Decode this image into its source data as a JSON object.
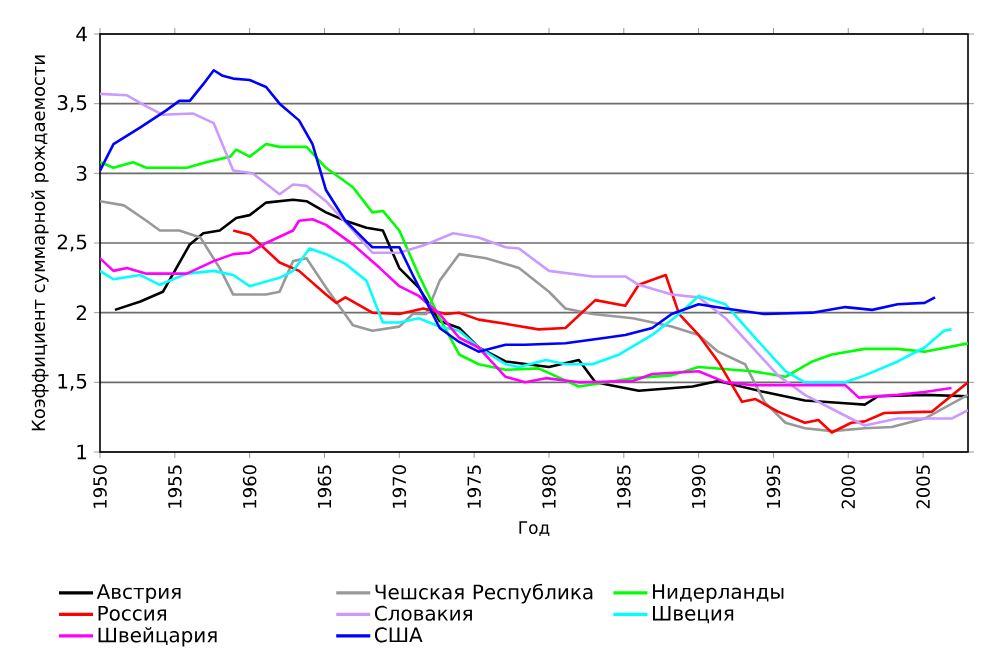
{
  "chart_data": {
    "type": "line",
    "xlabel": "Год",
    "ylabel": "Коэффициент суммарной рождаемости",
    "xlim": [
      1950,
      2008
    ],
    "xticks": [
      1950,
      1955,
      1960,
      1965,
      1970,
      1975,
      1980,
      1985,
      1990,
      1995,
      2000,
      2005
    ],
    "ylim": [
      1,
      4
    ],
    "yticks": [
      1,
      {
        "value": 1.5,
        "label": "1,5"
      },
      2,
      {
        "value": 2.5,
        "label": "2,5"
      },
      3,
      {
        "value": 3.5,
        "label": "3,5"
      },
      4
    ],
    "grid": "y",
    "legend": "bottom",
    "marker": "none",
    "line_style": "solid",
    "series": [
      {
        "name": "Австрия",
        "color": "#000000",
        "x": [
          1951,
          1952.7,
          1954.2,
          1956,
          1956.9,
          1958,
          1959.1,
          1960,
          1961.1,
          1962.9,
          1963.8,
          1965.1,
          1966.4,
          1967.8,
          1968.9,
          1970,
          1971.3,
          1972.7,
          1974,
          1975.3,
          1977.1,
          1980,
          1982,
          1983.1,
          1986,
          1989.6,
          1991.3,
          1994.4,
          1997.1,
          1999.8,
          2001.1,
          2002,
          2005.1,
          2008
        ],
        "values": [
          2.02,
          2.08,
          2.15,
          2.49,
          2.57,
          2.59,
          2.68,
          2.7,
          2.79,
          2.81,
          2.8,
          2.72,
          2.66,
          2.61,
          2.59,
          2.32,
          2.18,
          1.94,
          1.89,
          1.75,
          1.65,
          1.61,
          1.66,
          1.5,
          1.44,
          1.47,
          1.51,
          1.43,
          1.37,
          1.35,
          1.34,
          1.4,
          1.41,
          1.4
        ]
      },
      {
        "name": "Чешская Республика",
        "color": "#999999",
        "x": [
          1950,
          1951.6,
          1953.1,
          1954,
          1955.3,
          1956.7,
          1958,
          1958.9,
          1961.1,
          1962,
          1962.9,
          1963.8,
          1965.1,
          1966.9,
          1968.2,
          1970,
          1970.9,
          1971.8,
          1972.7,
          1974,
          1975.8,
          1977.1,
          1978,
          1980,
          1981.1,
          1982.9,
          1985.6,
          1988.2,
          1990,
          1991.3,
          1993.1,
          1994.4,
          1995.8,
          1997.1,
          1998.9,
          2001.1,
          2002.9,
          2005.1,
          2008
        ],
        "values": [
          2.8,
          2.77,
          2.66,
          2.59,
          2.59,
          2.54,
          2.32,
          2.13,
          2.13,
          2.15,
          2.37,
          2.39,
          2.18,
          1.91,
          1.87,
          1.9,
          1.99,
          1.99,
          2.23,
          2.42,
          2.39,
          2.35,
          2.32,
          2.15,
          2.03,
          1.99,
          1.96,
          1.9,
          1.84,
          1.72,
          1.63,
          1.36,
          1.21,
          1.17,
          1.15,
          1.17,
          1.18,
          1.24,
          1.41
        ]
      },
      {
        "name": "Нидерланды",
        "color": "#00ff00",
        "x": [
          1950,
          1950.9,
          1952.2,
          1953.1,
          1955.8,
          1957.1,
          1958.7,
          1959.1,
          1960,
          1961.1,
          1962,
          1963.8,
          1965.1,
          1966.9,
          1968.2,
          1968.9,
          1970,
          1971.3,
          1972.7,
          1974,
          1975.3,
          1977.1,
          1979.3,
          1982,
          1983.8,
          1985.6,
          1988.2,
          1990,
          1993.6,
          1995.8,
          1997.6,
          1998.9,
          2001.1,
          2003.3,
          2005.1,
          2008
        ],
        "values": [
          3.08,
          3.04,
          3.08,
          3.04,
          3.04,
          3.08,
          3.12,
          3.17,
          3.12,
          3.21,
          3.19,
          3.19,
          3.04,
          2.9,
          2.72,
          2.73,
          2.59,
          2.27,
          1.96,
          1.7,
          1.63,
          1.59,
          1.6,
          1.47,
          1.5,
          1.53,
          1.55,
          1.61,
          1.58,
          1.54,
          1.65,
          1.7,
          1.74,
          1.74,
          1.72,
          1.78
        ]
      },
      {
        "name": "Россия",
        "color": "#ff0000",
        "x": [
          1958.9,
          1960,
          1962,
          1963.3,
          1965.1,
          1965.8,
          1966.4,
          1968.2,
          1970,
          1971.6,
          1973.1,
          1974,
          1975.3,
          1977.1,
          1979.3,
          1981.1,
          1983.1,
          1985.1,
          1986,
          1987.8,
          1988.7,
          1990,
          1991.3,
          1992.9,
          1993.8,
          1995.3,
          1997.1,
          1998,
          1998.9,
          2000.2,
          2001.1,
          2002.4,
          2005.6,
          2008
        ],
        "values": [
          2.59,
          2.56,
          2.36,
          2.3,
          2.13,
          2.07,
          2.11,
          2.0,
          1.99,
          2.03,
          1.99,
          2.0,
          1.95,
          1.92,
          1.88,
          1.89,
          2.09,
          2.05,
          2.2,
          2.27,
          1.99,
          1.84,
          1.65,
          1.36,
          1.38,
          1.29,
          1.21,
          1.23,
          1.14,
          1.21,
          1.22,
          1.28,
          1.29,
          1.5
        ]
      },
      {
        "name": "Словакия",
        "color": "#cc99ff",
        "x": [
          1950,
          1951.8,
          1953.1,
          1954.2,
          1956.2,
          1957.6,
          1958.9,
          1960.2,
          1962,
          1962.9,
          1963.8,
          1965.1,
          1966.9,
          1968.2,
          1970,
          1971.8,
          1973.6,
          1975.3,
          1977.1,
          1978,
          1980,
          1982.9,
          1985.1,
          1986,
          1988.2,
          1990,
          1991.8,
          1993.6,
          1995.3,
          1997.1,
          1999.8,
          2001.1,
          2003.3,
          2006.9,
          2008
        ],
        "values": [
          3.57,
          3.56,
          3.48,
          3.42,
          3.43,
          3.36,
          3.02,
          3.0,
          2.85,
          2.92,
          2.91,
          2.8,
          2.59,
          2.43,
          2.43,
          2.49,
          2.57,
          2.54,
          2.47,
          2.46,
          2.3,
          2.26,
          2.26,
          2.2,
          2.13,
          2.11,
          1.96,
          1.75,
          1.55,
          1.41,
          1.26,
          1.19,
          1.24,
          1.24,
          1.3
        ]
      },
      {
        "name": "Швеция",
        "color": "#00ffff",
        "x": [
          1950,
          1950.9,
          1952.7,
          1954,
          1955.8,
          1957.6,
          1958.9,
          1960,
          1962,
          1962.9,
          1964,
          1965.1,
          1966.4,
          1967.8,
          1968.9,
          1970,
          1971.3,
          1972.7,
          1974,
          1975.3,
          1977.1,
          1978,
          1979.8,
          1981.1,
          1982.9,
          1984.7,
          1986.9,
          1988.7,
          1990,
          1991.8,
          1993.6,
          1995.8,
          1997.1,
          1999.8,
          2001.1,
          2003.3,
          2005.1,
          2006.4,
          2006.9
        ],
        "values": [
          2.3,
          2.24,
          2.27,
          2.2,
          2.28,
          2.3,
          2.27,
          2.19,
          2.25,
          2.3,
          2.46,
          2.42,
          2.35,
          2.23,
          1.93,
          1.93,
          1.96,
          1.9,
          1.87,
          1.75,
          1.63,
          1.61,
          1.66,
          1.63,
          1.63,
          1.7,
          1.84,
          1.99,
          2.12,
          2.06,
          1.84,
          1.58,
          1.5,
          1.5,
          1.55,
          1.65,
          1.75,
          1.87,
          1.88
        ]
      },
      {
        "name": "Швейцария",
        "color": "#ff00ff",
        "x": [
          1950,
          1950.9,
          1951.8,
          1953.1,
          1955.8,
          1957.6,
          1958.9,
          1960,
          1961.1,
          1962.9,
          1963.3,
          1964.2,
          1965.1,
          1966.9,
          1968.7,
          1970,
          1971.3,
          1972.7,
          1974,
          1975.3,
          1977.1,
          1978.4,
          1979.8,
          1982,
          1985.6,
          1986.9,
          1990,
          1991.8,
          1993.6,
          1995.8,
          1999.8,
          2000.7,
          2003.3,
          2005.1,
          2006.9
        ],
        "values": [
          2.39,
          2.3,
          2.32,
          2.28,
          2.28,
          2.37,
          2.42,
          2.43,
          2.5,
          2.59,
          2.66,
          2.67,
          2.63,
          2.49,
          2.32,
          2.19,
          2.12,
          1.99,
          1.82,
          1.75,
          1.54,
          1.5,
          1.53,
          1.5,
          1.51,
          1.56,
          1.58,
          1.5,
          1.48,
          1.48,
          1.48,
          1.39,
          1.41,
          1.43,
          1.46
        ]
      },
      {
        "name": "США",
        "color": "#0000ff",
        "x": [
          1950,
          1950.9,
          1952.7,
          1954.4,
          1955.3,
          1956,
          1956.9,
          1957.6,
          1958.2,
          1958.9,
          1960,
          1961.1,
          1962,
          1963.3,
          1964.2,
          1965.1,
          1966.4,
          1967.8,
          1968.2,
          1970,
          1970.9,
          1972.7,
          1974,
          1975.3,
          1977.1,
          1978.4,
          1981.1,
          1983.8,
          1985.1,
          1986.9,
          1988.2,
          1990,
          1991.8,
          1994.4,
          1997.6,
          1999.8,
          2001.6,
          2003.3,
          2005.1,
          2005.8
        ],
        "values": [
          3.02,
          3.21,
          3.33,
          3.45,
          3.52,
          3.52,
          3.64,
          3.74,
          3.7,
          3.68,
          3.67,
          3.62,
          3.5,
          3.38,
          3.21,
          2.88,
          2.66,
          2.51,
          2.47,
          2.47,
          2.27,
          1.89,
          1.79,
          1.72,
          1.77,
          1.77,
          1.78,
          1.82,
          1.84,
          1.89,
          1.99,
          2.06,
          2.03,
          1.99,
          2.0,
          2.04,
          2.02,
          2.06,
          2.07,
          2.11
        ]
      }
    ]
  }
}
